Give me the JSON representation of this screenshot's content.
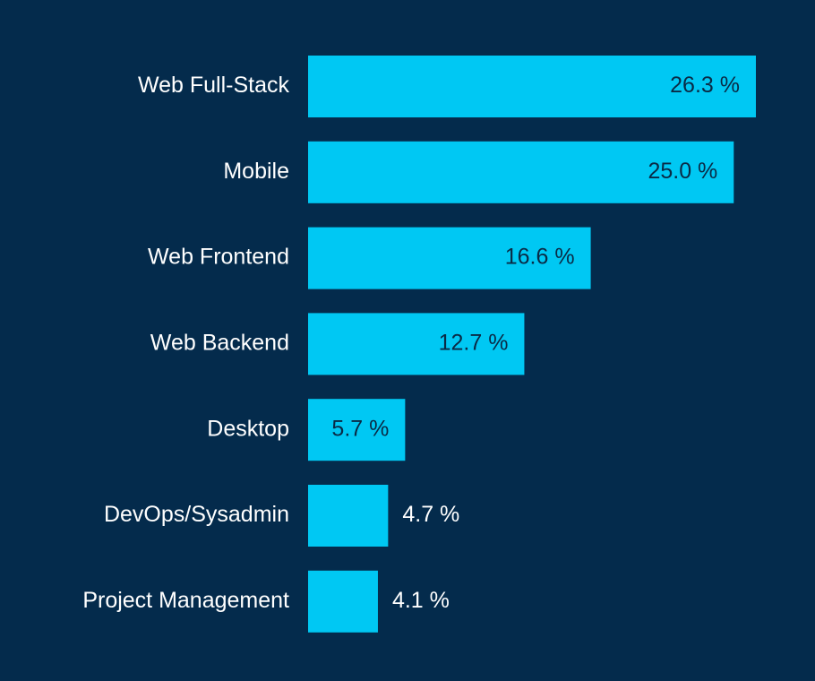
{
  "colors": {
    "background": "#042b4c",
    "bar": "#00c8f3",
    "label_text": "#ffffff",
    "value_text_inside": "#0a2a45",
    "value_text_outside": "#ffffff"
  },
  "chart_data": {
    "type": "bar",
    "orientation": "horizontal",
    "categories": [
      "Web Full-Stack",
      "Mobile",
      "Web Frontend",
      "Web Backend",
      "Desktop",
      "DevOps/Sysadmin",
      "Project Management"
    ],
    "values": [
      26.3,
      25.0,
      16.6,
      12.7,
      5.7,
      4.7,
      4.1
    ],
    "value_labels": [
      "26.3 %",
      "25.0 %",
      "16.6 %",
      "12.7 %",
      "5.7 %",
      "4.7 %",
      "4.1 %"
    ],
    "unit": "%",
    "grid": false,
    "legend": "none"
  }
}
